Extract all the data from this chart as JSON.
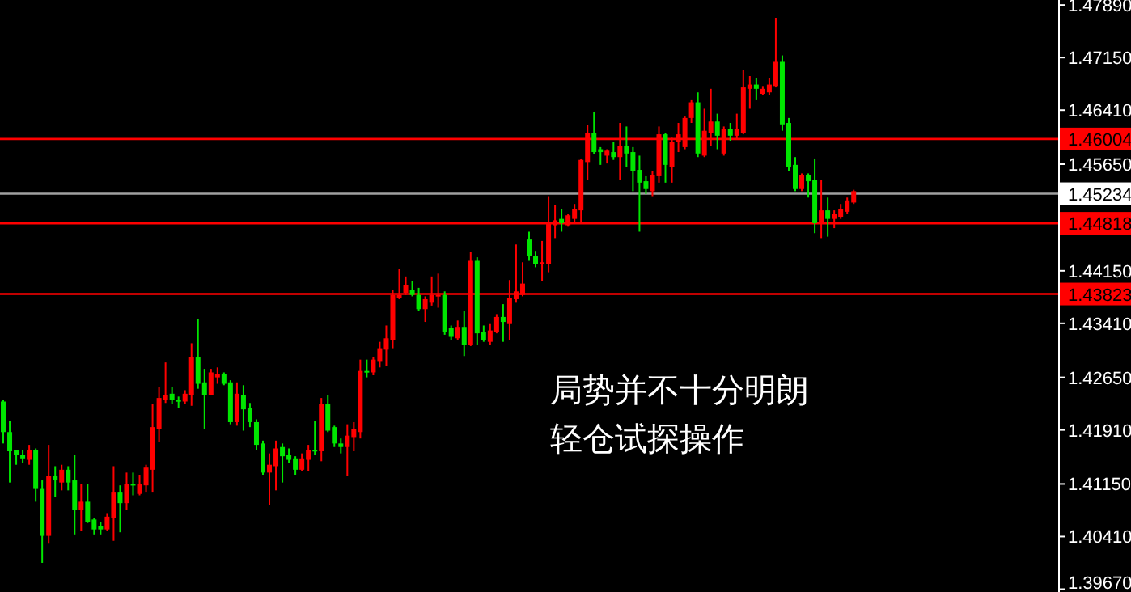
{
  "chart_data": {
    "type": "candlestick",
    "categories": [
      null,
      null,
      null,
      null,
      null,
      null,
      null,
      null,
      null,
      null,
      null,
      null,
      null,
      null,
      null,
      null,
      null,
      null,
      null,
      null,
      null,
      null,
      null,
      null,
      null,
      null,
      null,
      null,
      null,
      null,
      null,
      null,
      null,
      null,
      null,
      null,
      null,
      null,
      null,
      null,
      null,
      null,
      null,
      null,
      null,
      null,
      null,
      null,
      null,
      null,
      null,
      null,
      null,
      null,
      null,
      null,
      null,
      null,
      null,
      null,
      null,
      null,
      null,
      null,
      null,
      null,
      null,
      null,
      null,
      null,
      null,
      null,
      null,
      null,
      null,
      null,
      null,
      null,
      null,
      null,
      null,
      null,
      null,
      null,
      null,
      null,
      null,
      null,
      null,
      null,
      null,
      null,
      null,
      null,
      null,
      null,
      null,
      null,
      null,
      null,
      null,
      null,
      null,
      null,
      null,
      null,
      null,
      null,
      null,
      null,
      null,
      null,
      null,
      null,
      null,
      null,
      null,
      null,
      null,
      null,
      null,
      null,
      null,
      null,
      null,
      null,
      null,
      null,
      null,
      null,
      null,
      null,
      null,
      null,
      null,
      null,
      null,
      null,
      null,
      null,
      null,
      null,
      null,
      null,
      null,
      null,
      null,
      null,
      null,
      null,
      null,
      null,
      null,
      null,
      null,
      null,
      null,
      null,
      null,
      null,
      null,
      null,
      null
    ],
    "ohlc": [
      [
        1.4231,
        1.4233,
        1.4172,
        1.4188
      ],
      [
        1.4188,
        1.4204,
        1.4117,
        1.4161
      ],
      [
        1.4163,
        1.4163,
        1.4142,
        1.4156
      ],
      [
        1.4156,
        1.4163,
        1.4144,
        1.4151
      ],
      [
        1.4149,
        1.417,
        1.4142,
        1.4163
      ],
      [
        1.4163,
        1.4165,
        1.409,
        1.4108
      ],
      [
        1.4108,
        1.412,
        1.4004,
        1.4042
      ],
      [
        1.4042,
        1.417,
        1.4031,
        1.4126
      ],
      [
        1.4126,
        1.414,
        1.4097,
        1.412
      ],
      [
        1.4117,
        1.4142,
        1.4106,
        1.4135
      ],
      [
        1.4135,
        1.414,
        1.4106,
        1.4117
      ],
      [
        1.412,
        1.4156,
        1.4044,
        1.4079
      ],
      [
        1.4079,
        1.4115,
        1.4049,
        1.409
      ],
      [
        1.409,
        1.4115,
        1.406,
        1.4062
      ],
      [
        1.4065,
        1.4067,
        1.4044,
        1.4051
      ],
      [
        1.4056,
        1.4062,
        1.4044,
        1.4051
      ],
      [
        1.4051,
        1.4074,
        1.4049,
        1.4069
      ],
      [
        1.4067,
        1.414,
        1.4035,
        1.4104
      ],
      [
        1.4104,
        1.4113,
        1.4047,
        1.4088
      ],
      [
        1.4088,
        1.4131,
        1.4079,
        1.4115
      ],
      [
        1.4115,
        1.4131,
        1.4099,
        1.4113
      ],
      [
        1.4101,
        1.4128,
        1.4099,
        1.4115
      ],
      [
        1.4113,
        1.4142,
        1.4104,
        1.4138
      ],
      [
        1.4135,
        1.4227,
        1.4104,
        1.4195
      ],
      [
        1.4192,
        1.4252,
        1.4174,
        1.4236
      ],
      [
        1.4233,
        1.4286,
        1.4229,
        1.424
      ],
      [
        1.4242,
        1.4252,
        1.4227,
        1.4233
      ],
      [
        1.4233,
        1.4238,
        1.4222,
        1.4231
      ],
      [
        1.4231,
        1.4247,
        1.4227,
        1.4242
      ],
      [
        1.424,
        1.4313,
        1.4225,
        1.4293
      ],
      [
        1.4293,
        1.4347,
        1.4249,
        1.4256
      ],
      [
        1.4258,
        1.4277,
        1.4192,
        1.424
      ],
      [
        1.424,
        1.4277,
        1.424,
        1.4272
      ],
      [
        1.4265,
        1.4279,
        1.4256,
        1.427
      ],
      [
        1.427,
        1.4272,
        1.4254,
        1.4256
      ],
      [
        1.4258,
        1.4261,
        1.4199,
        1.4202
      ],
      [
        1.4202,
        1.4258,
        1.4197,
        1.4242
      ],
      [
        1.424,
        1.4254,
        1.419,
        1.422
      ],
      [
        1.4222,
        1.4229,
        1.4195,
        1.4202
      ],
      [
        1.4202,
        1.4206,
        1.4163,
        1.417
      ],
      [
        1.4172,
        1.4176,
        1.4128,
        1.4131
      ],
      [
        1.4131,
        1.4158,
        1.4085,
        1.4142
      ],
      [
        1.414,
        1.4176,
        1.4106,
        1.4165
      ],
      [
        1.4167,
        1.4172,
        1.4117,
        1.4154
      ],
      [
        1.4156,
        1.4165,
        1.4144,
        1.4149
      ],
      [
        1.4151,
        1.4154,
        1.4128,
        1.4135
      ],
      [
        1.4135,
        1.4158,
        1.4133,
        1.4151
      ],
      [
        1.4149,
        1.417,
        1.4133,
        1.4163
      ],
      [
        1.4163,
        1.4204,
        1.4156,
        1.4161
      ],
      [
        1.4161,
        1.4236,
        1.4147,
        1.4227
      ],
      [
        1.4227,
        1.424,
        1.4188,
        1.419
      ],
      [
        1.4195,
        1.4197,
        1.4167,
        1.4172
      ],
      [
        1.4172,
        1.4179,
        1.4158,
        1.4167
      ],
      [
        1.4167,
        1.4199,
        1.4126,
        1.4183
      ],
      [
        1.4181,
        1.4202,
        1.4161,
        1.4192
      ],
      [
        1.4188,
        1.429,
        1.4179,
        1.4274
      ],
      [
        1.4274,
        1.429,
        1.4265,
        1.4272
      ],
      [
        1.4272,
        1.4293,
        1.4268,
        1.429
      ],
      [
        1.4288,
        1.4315,
        1.4279,
        1.4306
      ],
      [
        1.4304,
        1.4338,
        1.4281,
        1.432
      ],
      [
        1.4318,
        1.4388,
        1.4306,
        1.4381
      ],
      [
        1.4377,
        1.4418,
        1.4375,
        1.4381
      ],
      [
        1.4384,
        1.4407,
        1.4381,
        1.4395
      ],
      [
        1.4388,
        1.44,
        1.4379,
        1.4381
      ],
      [
        1.4381,
        1.4391,
        1.4359,
        1.4361
      ],
      [
        1.4361,
        1.4379,
        1.4343,
        1.4375
      ],
      [
        1.437,
        1.4407,
        1.4366,
        1.4381
      ],
      [
        1.4379,
        1.4411,
        1.4363,
        1.4381
      ],
      [
        1.4381,
        1.4386,
        1.4325,
        1.4329
      ],
      [
        1.4334,
        1.4338,
        1.4318,
        1.4322
      ],
      [
        1.432,
        1.4345,
        1.4318,
        1.4336
      ],
      [
        1.4336,
        1.4359,
        1.4295,
        1.4311
      ],
      [
        1.4311,
        1.4441,
        1.4309,
        1.4429
      ],
      [
        1.4429,
        1.4434,
        1.4311,
        1.4327
      ],
      [
        1.4329,
        1.4338,
        1.4315,
        1.4318
      ],
      [
        1.4315,
        1.434,
        1.4311,
        1.4331
      ],
      [
        1.4329,
        1.4354,
        1.4327,
        1.435
      ],
      [
        1.435,
        1.4368,
        1.4315,
        1.4343
      ],
      [
        1.434,
        1.4402,
        1.4318,
        1.4377
      ],
      [
        1.4375,
        1.4452,
        1.437,
        1.4386
      ],
      [
        1.4381,
        1.4427,
        1.4379,
        1.4397
      ],
      [
        1.4459,
        1.447,
        1.4429,
        1.4436
      ],
      [
        1.4436,
        1.4443,
        1.442,
        1.4425
      ],
      [
        1.4425,
        1.4457,
        1.44,
        1.4427
      ],
      [
        1.4425,
        1.452,
        1.4413,
        1.4482
      ],
      [
        1.4479,
        1.4507,
        1.4461,
        1.4486
      ],
      [
        1.4488,
        1.4502,
        1.447,
        1.4482
      ],
      [
        1.4479,
        1.4495,
        1.4477,
        1.4493
      ],
      [
        1.4488,
        1.4509,
        1.4482,
        1.4502
      ],
      [
        1.45,
        1.4573,
        1.4482,
        1.4571
      ],
      [
        1.4568,
        1.462,
        1.4543,
        1.4609
      ],
      [
        1.4609,
        1.4639,
        1.4579,
        1.4582
      ],
      [
        1.4586,
        1.4589,
        1.4564,
        1.4582
      ],
      [
        1.4577,
        1.4586,
        1.4566,
        1.4584
      ],
      [
        1.4582,
        1.4596,
        1.4571,
        1.4575
      ],
      [
        1.4575,
        1.4623,
        1.4543,
        1.4591
      ],
      [
        1.4591,
        1.4618,
        1.4561,
        1.458
      ],
      [
        1.4582,
        1.4589,
        1.4527,
        1.4555
      ],
      [
        1.4557,
        1.4577,
        1.447,
        1.4539
      ],
      [
        1.4541,
        1.4548,
        1.4523,
        1.453
      ],
      [
        1.4527,
        1.4555,
        1.452,
        1.455
      ],
      [
        1.4548,
        1.4618,
        1.4539,
        1.4607
      ],
      [
        1.4607,
        1.4609,
        1.4539,
        1.4564
      ],
      [
        1.4561,
        1.4602,
        1.4539,
        1.4596
      ],
      [
        1.4596,
        1.4623,
        1.4582,
        1.4607
      ],
      [
        1.4589,
        1.4632,
        1.4586,
        1.463
      ],
      [
        1.463,
        1.4655,
        1.4623,
        1.4652
      ],
      [
        1.4652,
        1.4666,
        1.4575,
        1.458
      ],
      [
        1.4577,
        1.4643,
        1.4575,
        1.4612
      ],
      [
        1.4609,
        1.4671,
        1.4591,
        1.4625
      ],
      [
        1.4625,
        1.4636,
        1.4586,
        1.4605
      ],
      [
        1.458,
        1.4618,
        1.4577,
        1.4614
      ],
      [
        1.4614,
        1.4623,
        1.4598,
        1.4605
      ],
      [
        1.4605,
        1.4636,
        1.46,
        1.4614
      ],
      [
        1.4609,
        1.4698,
        1.4607,
        1.4673
      ],
      [
        1.4671,
        1.4689,
        1.4643,
        1.4677
      ],
      [
        1.4677,
        1.4686,
        1.4655,
        1.4671
      ],
      [
        1.4664,
        1.4675,
        1.4662,
        1.4671
      ],
      [
        1.4666,
        1.4686,
        1.4662,
        1.4677
      ],
      [
        1.4675,
        1.4771,
        1.4673,
        1.4709
      ],
      [
        1.4709,
        1.4718,
        1.4612,
        1.4621
      ],
      [
        1.4623,
        1.463,
        1.4555,
        1.4561
      ],
      [
        1.4564,
        1.4575,
        1.4527,
        1.453
      ],
      [
        1.453,
        1.4552,
        1.4527,
        1.455
      ],
      [
        1.455,
        1.4552,
        1.4518,
        1.4541
      ],
      [
        1.4543,
        1.4573,
        1.4468,
        1.4482
      ],
      [
        1.4482,
        1.4543,
        1.4461,
        1.45
      ],
      [
        1.45,
        1.4518,
        1.4463,
        1.4488
      ],
      [
        1.4488,
        1.45,
        1.4475,
        1.4495
      ],
      [
        1.4491,
        1.4509,
        1.4488,
        1.4502
      ],
      [
        1.4498,
        1.4518,
        1.4495,
        1.4514
      ],
      [
        1.4511,
        1.4529,
        1.4509,
        1.4527
      ],
      null,
      null,
      null,
      null,
      null,
      null,
      null,
      null,
      null,
      null,
      null,
      null,
      null,
      null,
      null,
      null,
      null,
      null,
      null,
      null,
      null,
      null,
      null,
      null,
      null,
      null,
      null,
      null,
      null,
      null,
      null
    ],
    "colors": [
      "#00e600",
      "#00e600",
      "#00e600",
      "#00e600",
      "#ff0000",
      "#00e600",
      "#00e600",
      "#ff0000",
      "#00e600",
      "#ff0000",
      "#00e600",
      "#00e600",
      "#ff0000",
      "#00e600",
      "#00e600",
      "#00e600",
      "#ff0000",
      "#ff0000",
      "#00e600",
      "#ff0000",
      "#00e600",
      "#ff0000",
      "#ff0000",
      "#ff0000",
      "#ff0000",
      "#ff0000",
      "#00e600",
      "#00e600",
      "#ff0000",
      "#ff0000",
      "#00e600",
      "#00e600",
      "#ff0000",
      "#ff0000",
      "#00e600",
      "#00e600",
      "#ff0000",
      "#00e600",
      "#00e600",
      "#00e600",
      "#00e600",
      "#ff0000",
      "#ff0000",
      "#00e600",
      "#00e600",
      "#00e600",
      "#ff0000",
      "#ff0000",
      "#00e600",
      "#ff0000",
      "#00e600",
      "#00e600",
      "#00e600",
      "#ff0000",
      "#ff0000",
      "#ff0000",
      "#00e600",
      "#ff0000",
      "#ff0000",
      "#ff0000",
      "#ff0000",
      "#ff0000",
      "#ff0000",
      "#00e600",
      "#00e600",
      "#ff0000",
      "#ff0000",
      "#ff0000",
      "#00e600",
      "#00e600",
      "#ff0000",
      "#00e600",
      "#ff0000",
      "#00e600",
      "#00e600",
      "#ff0000",
      "#ff0000",
      "#00e600",
      "#ff0000",
      "#ff0000",
      "#ff0000",
      "#00e600",
      "#00e600",
      "#ff0000",
      "#ff0000",
      "#ff0000",
      "#00e600",
      "#ff0000",
      "#ff0000",
      "#ff0000",
      "#ff0000",
      "#00e600",
      "#00e600",
      "#ff0000",
      "#00e600",
      "#ff0000",
      "#00e600",
      "#00e600",
      "#00e600",
      "#00e600",
      "#ff0000",
      "#ff0000",
      "#00e600",
      "#ff0000",
      "#ff0000",
      "#ff0000",
      "#ff0000",
      "#00e600",
      "#ff0000",
      "#ff0000",
      "#00e600",
      "#ff0000",
      "#00e600",
      "#ff0000",
      "#ff0000",
      "#ff0000",
      "#00e600",
      "#ff0000",
      "#ff0000",
      "#ff0000",
      "#00e600",
      "#00e600",
      "#00e600",
      "#ff0000",
      "#00e600",
      "#00e600",
      "#ff0000",
      "#00e600",
      "#ff0000",
      "#ff0000",
      "#ff0000",
      "#ff0000",
      null,
      null,
      null,
      null,
      null,
      null,
      null,
      null,
      null,
      null,
      null,
      null,
      null,
      null,
      null,
      null,
      null,
      null,
      null,
      null,
      null,
      null,
      null,
      null,
      null,
      null,
      null,
      null,
      null,
      null,
      null
    ],
    "ylim": [
      1.3963,
      1.4796
    ],
    "yticks": [
      {
        "value": 1.4789,
        "label": "1.47890"
      },
      {
        "value": 1.4715,
        "label": "1.47150"
      },
      {
        "value": 1.4641,
        "label": "1.46410"
      },
      {
        "value": 1.4565,
        "label": "1.45650"
      },
      {
        "value": 1.4415,
        "label": "1.44150"
      },
      {
        "value": 1.4341,
        "label": "1.43410"
      },
      {
        "value": 1.4265,
        "label": "1.42650"
      },
      {
        "value": 1.4191,
        "label": "1.41910"
      },
      {
        "value": 1.4115,
        "label": "1.41150"
      },
      {
        "value": 1.4041,
        "label": "1.40410"
      },
      {
        "value": 1.3967,
        "label": "1.39670"
      }
    ],
    "ref_lines": [
      {
        "axis": "y",
        "value": 1.46004,
        "label": "1.46004",
        "color": "#ff0000"
      },
      {
        "axis": "y",
        "value": 1.45234,
        "label": "1.45234",
        "color": "#a0a0a0"
      },
      {
        "axis": "y",
        "value": 1.44818,
        "label": "1.44818",
        "color": "#ff0000"
      },
      {
        "axis": "y",
        "value": 1.43823,
        "label": "1.43823",
        "color": "#ff0000"
      }
    ],
    "annotations": [
      "局势并不十分明朗",
      "轻仓试探操作"
    ],
    "tick_labels": "y",
    "grid": false
  }
}
